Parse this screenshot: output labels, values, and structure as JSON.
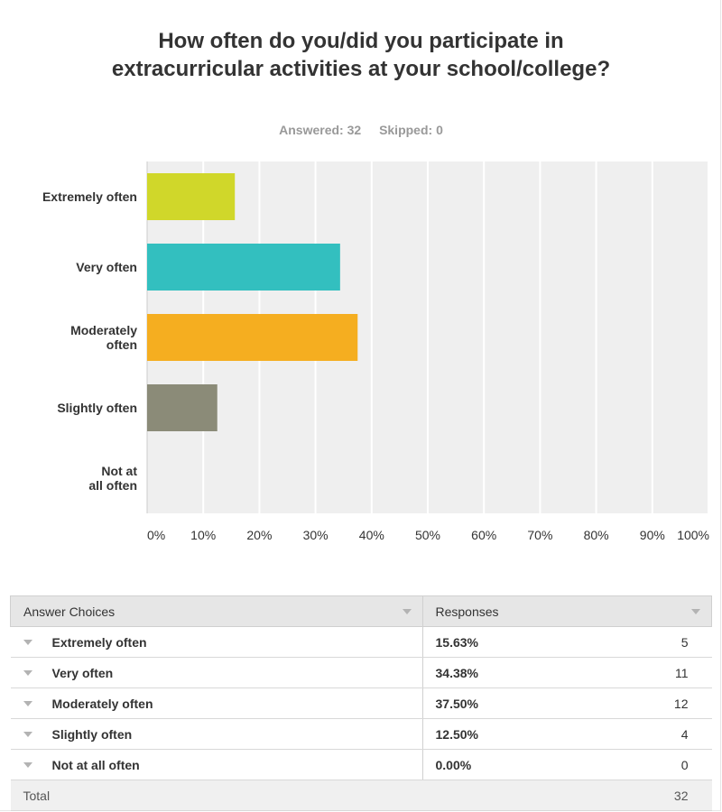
{
  "question": "How often do you/did you participate in extracurricular activities at your school/college?",
  "answered_label": "Answered: 32",
  "skipped_label": "Skipped: 0",
  "chart_data": {
    "type": "bar",
    "orientation": "horizontal",
    "categories": [
      "Extremely often",
      "Very often",
      "Moderately often",
      "Slightly often",
      "Not at all often"
    ],
    "values": [
      15.63,
      34.38,
      37.5,
      12.5,
      0.0
    ],
    "colors": [
      "#d0d72a",
      "#33bfbf",
      "#f5ae20",
      "#8b8b78"
    ],
    "xlim": [
      0,
      100
    ],
    "x_ticks": [
      "0%",
      "10%",
      "20%",
      "30%",
      "40%",
      "50%",
      "60%",
      "70%",
      "80%",
      "90%",
      "100%"
    ],
    "grid": true
  },
  "table": {
    "headers": [
      "Answer Choices",
      "Responses"
    ],
    "rows": [
      {
        "choice": "Extremely often",
        "percent": "15.63%",
        "count": "5"
      },
      {
        "choice": "Very often",
        "percent": "34.38%",
        "count": "11"
      },
      {
        "choice": "Moderately often",
        "percent": "37.50%",
        "count": "12"
      },
      {
        "choice": "Slightly often",
        "percent": "12.50%",
        "count": "4"
      },
      {
        "choice": "Not at all often",
        "percent": "0.00%",
        "count": "0"
      }
    ],
    "total_label": "Total",
    "total_count": "32"
  }
}
